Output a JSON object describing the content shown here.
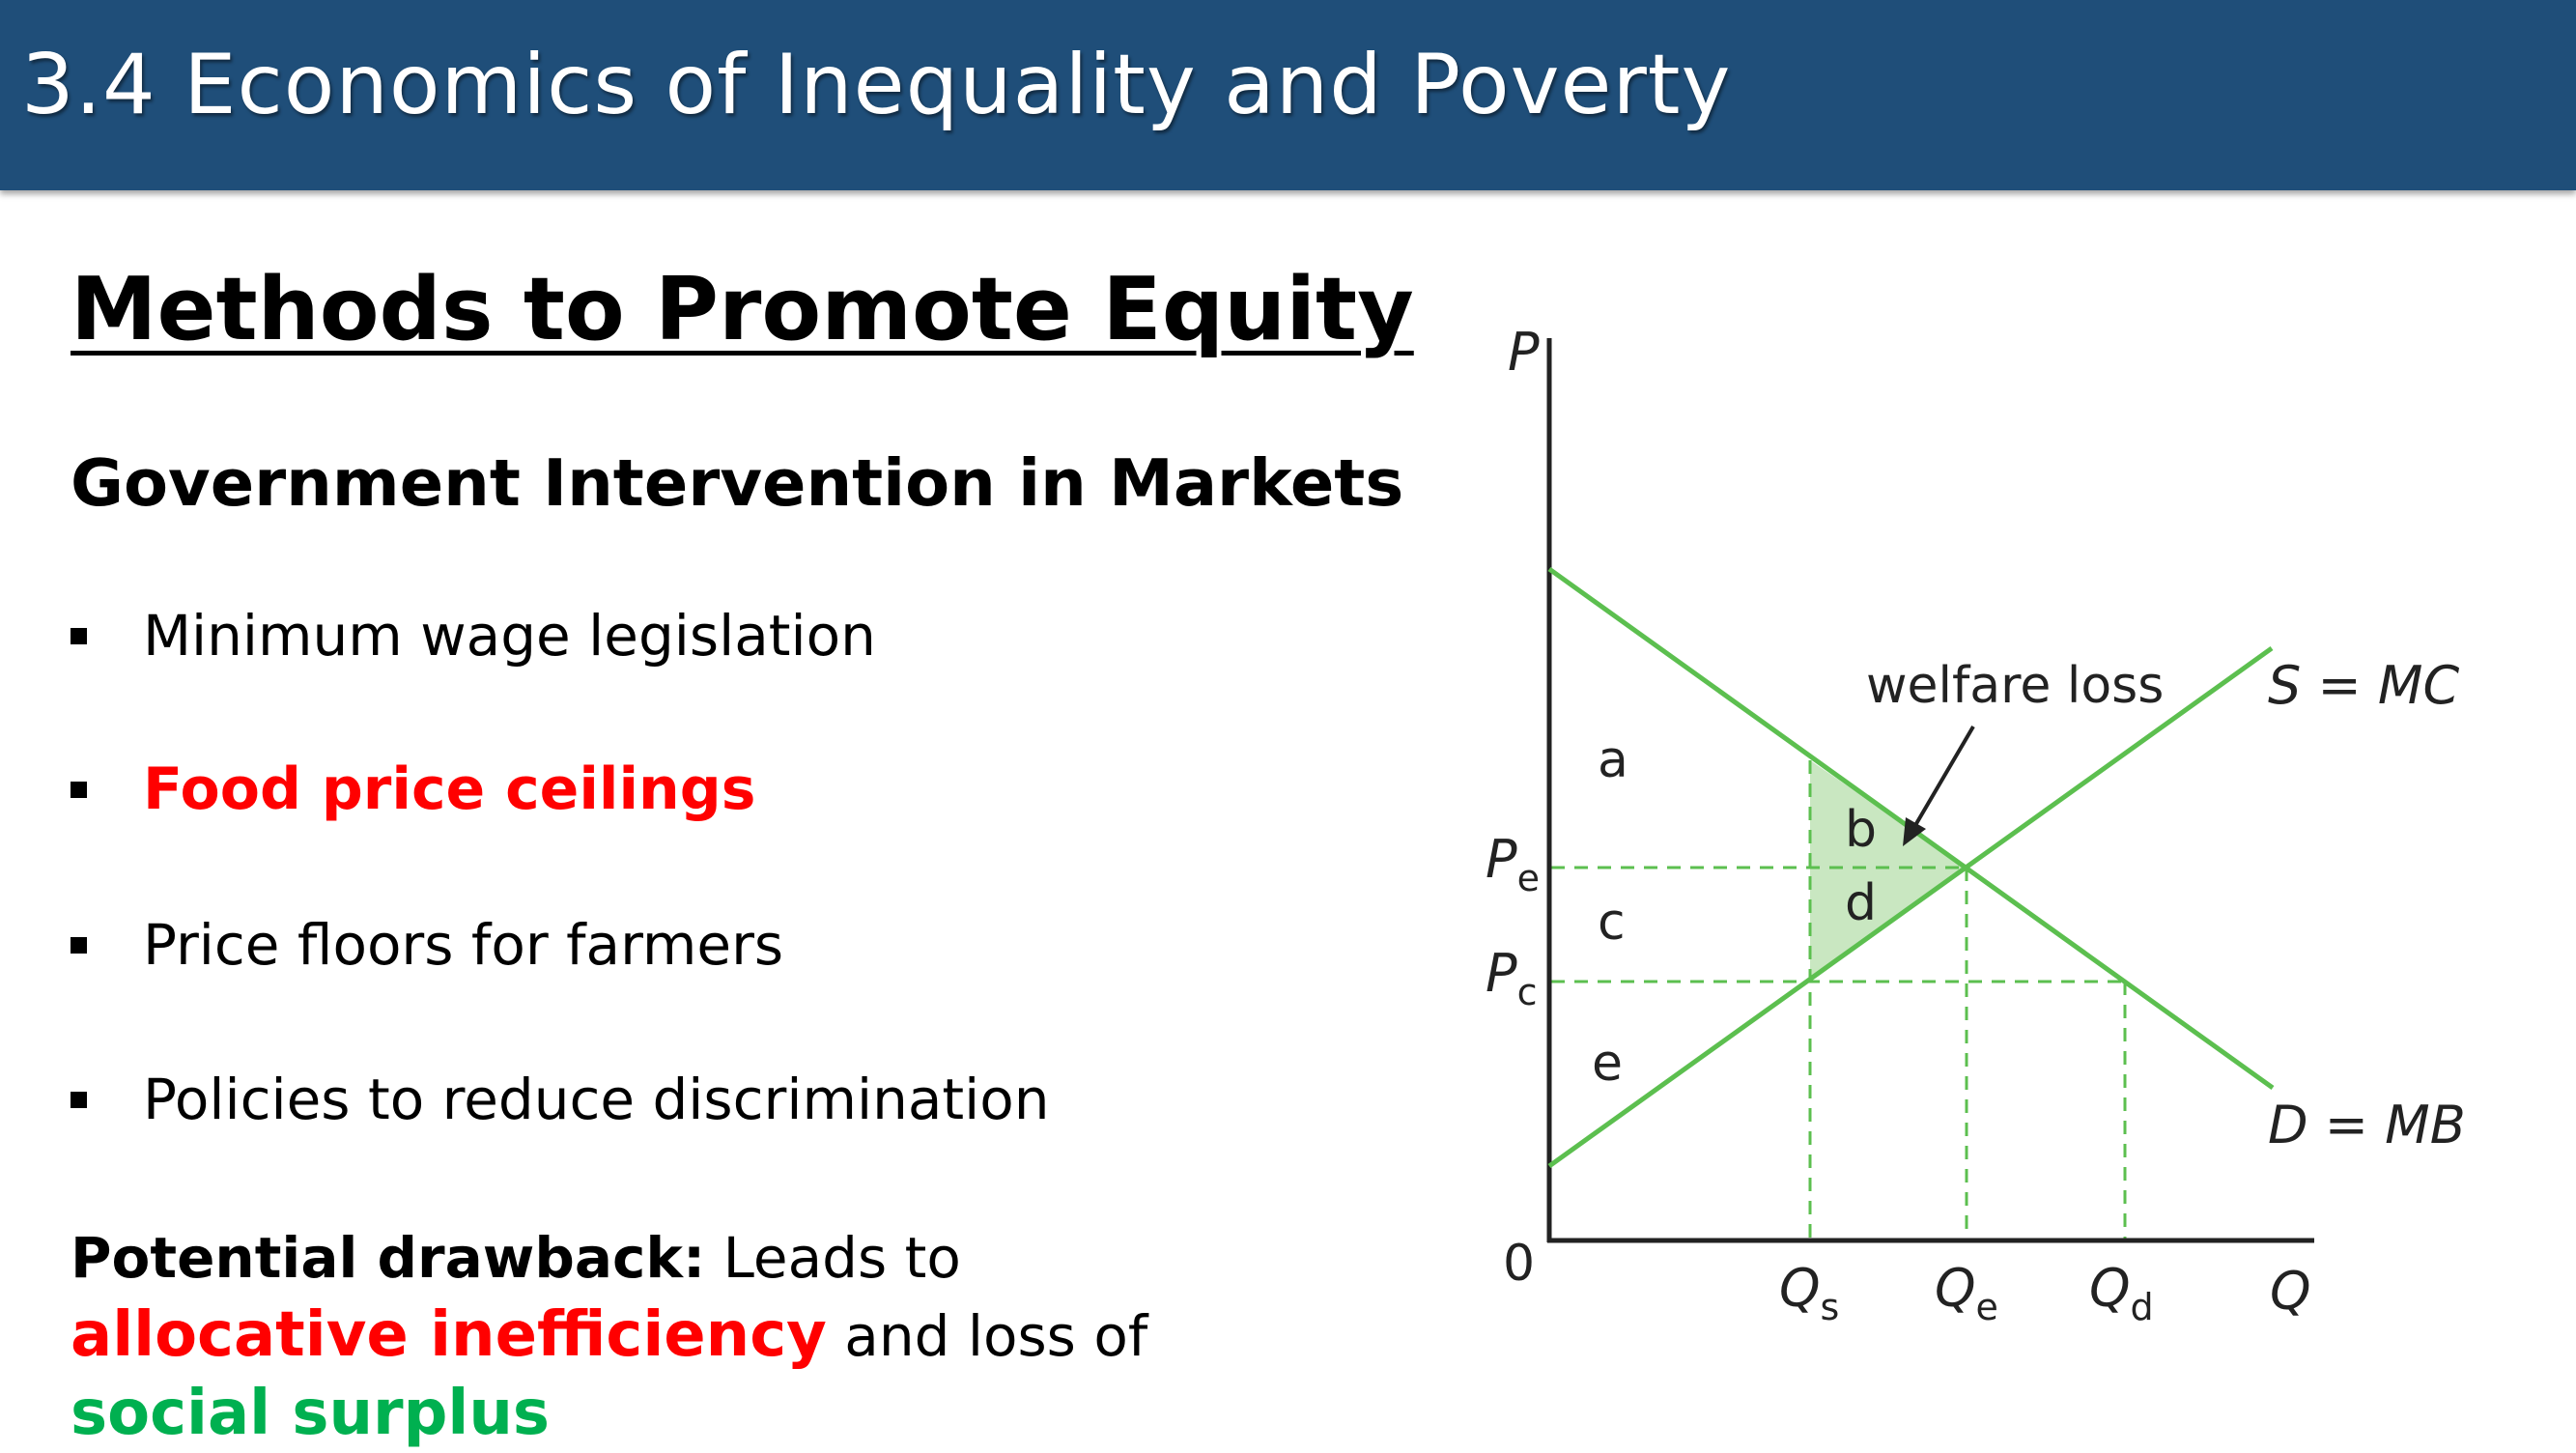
{
  "header": {
    "title": "3.4 Economics of Inequality and Poverty"
  },
  "title": "Methods to Promote Equity",
  "subtitle": "Government Intervention in Markets",
  "bullets": [
    {
      "text": "Minimum wage legislation",
      "highlight": false
    },
    {
      "text": "Food price ceilings",
      "highlight": true
    },
    {
      "text": "Price floors for farmers",
      "highlight": false
    },
    {
      "text": "Policies to reduce discrimination",
      "highlight": false
    }
  ],
  "drawback": {
    "label": "Potential drawback:",
    "text1": " Leads to ",
    "red": "allocative inefficiency",
    "text2": " and loss of ",
    "green": "social surplus"
  },
  "diagram": {
    "axis_y": "P",
    "axis_x": "Q",
    "origin": "0",
    "price_labels": {
      "pe_main": "P",
      "pe_sub": "e",
      "pc_main": "P",
      "pc_sub": "c"
    },
    "quantity_labels": {
      "qs_main": "Q",
      "qs_sub": "s",
      "qe_main": "Q",
      "qe_sub": "e",
      "qd_main": "Q",
      "qd_sub": "d"
    },
    "supply_label": "S = MC",
    "demand_label": "D = MB",
    "annotation": "welfare loss",
    "areas": {
      "a": "a",
      "b": "b",
      "c": "c",
      "d": "d",
      "e": "e"
    },
    "colors": {
      "curve": "#5cbf4f",
      "shade": "#c9e7c1",
      "dash": "#5cbf4f"
    }
  },
  "colors": {
    "header_bg": "#1f4e79",
    "emphasis_red": "#ff0000",
    "emphasis_green": "#00b050"
  }
}
